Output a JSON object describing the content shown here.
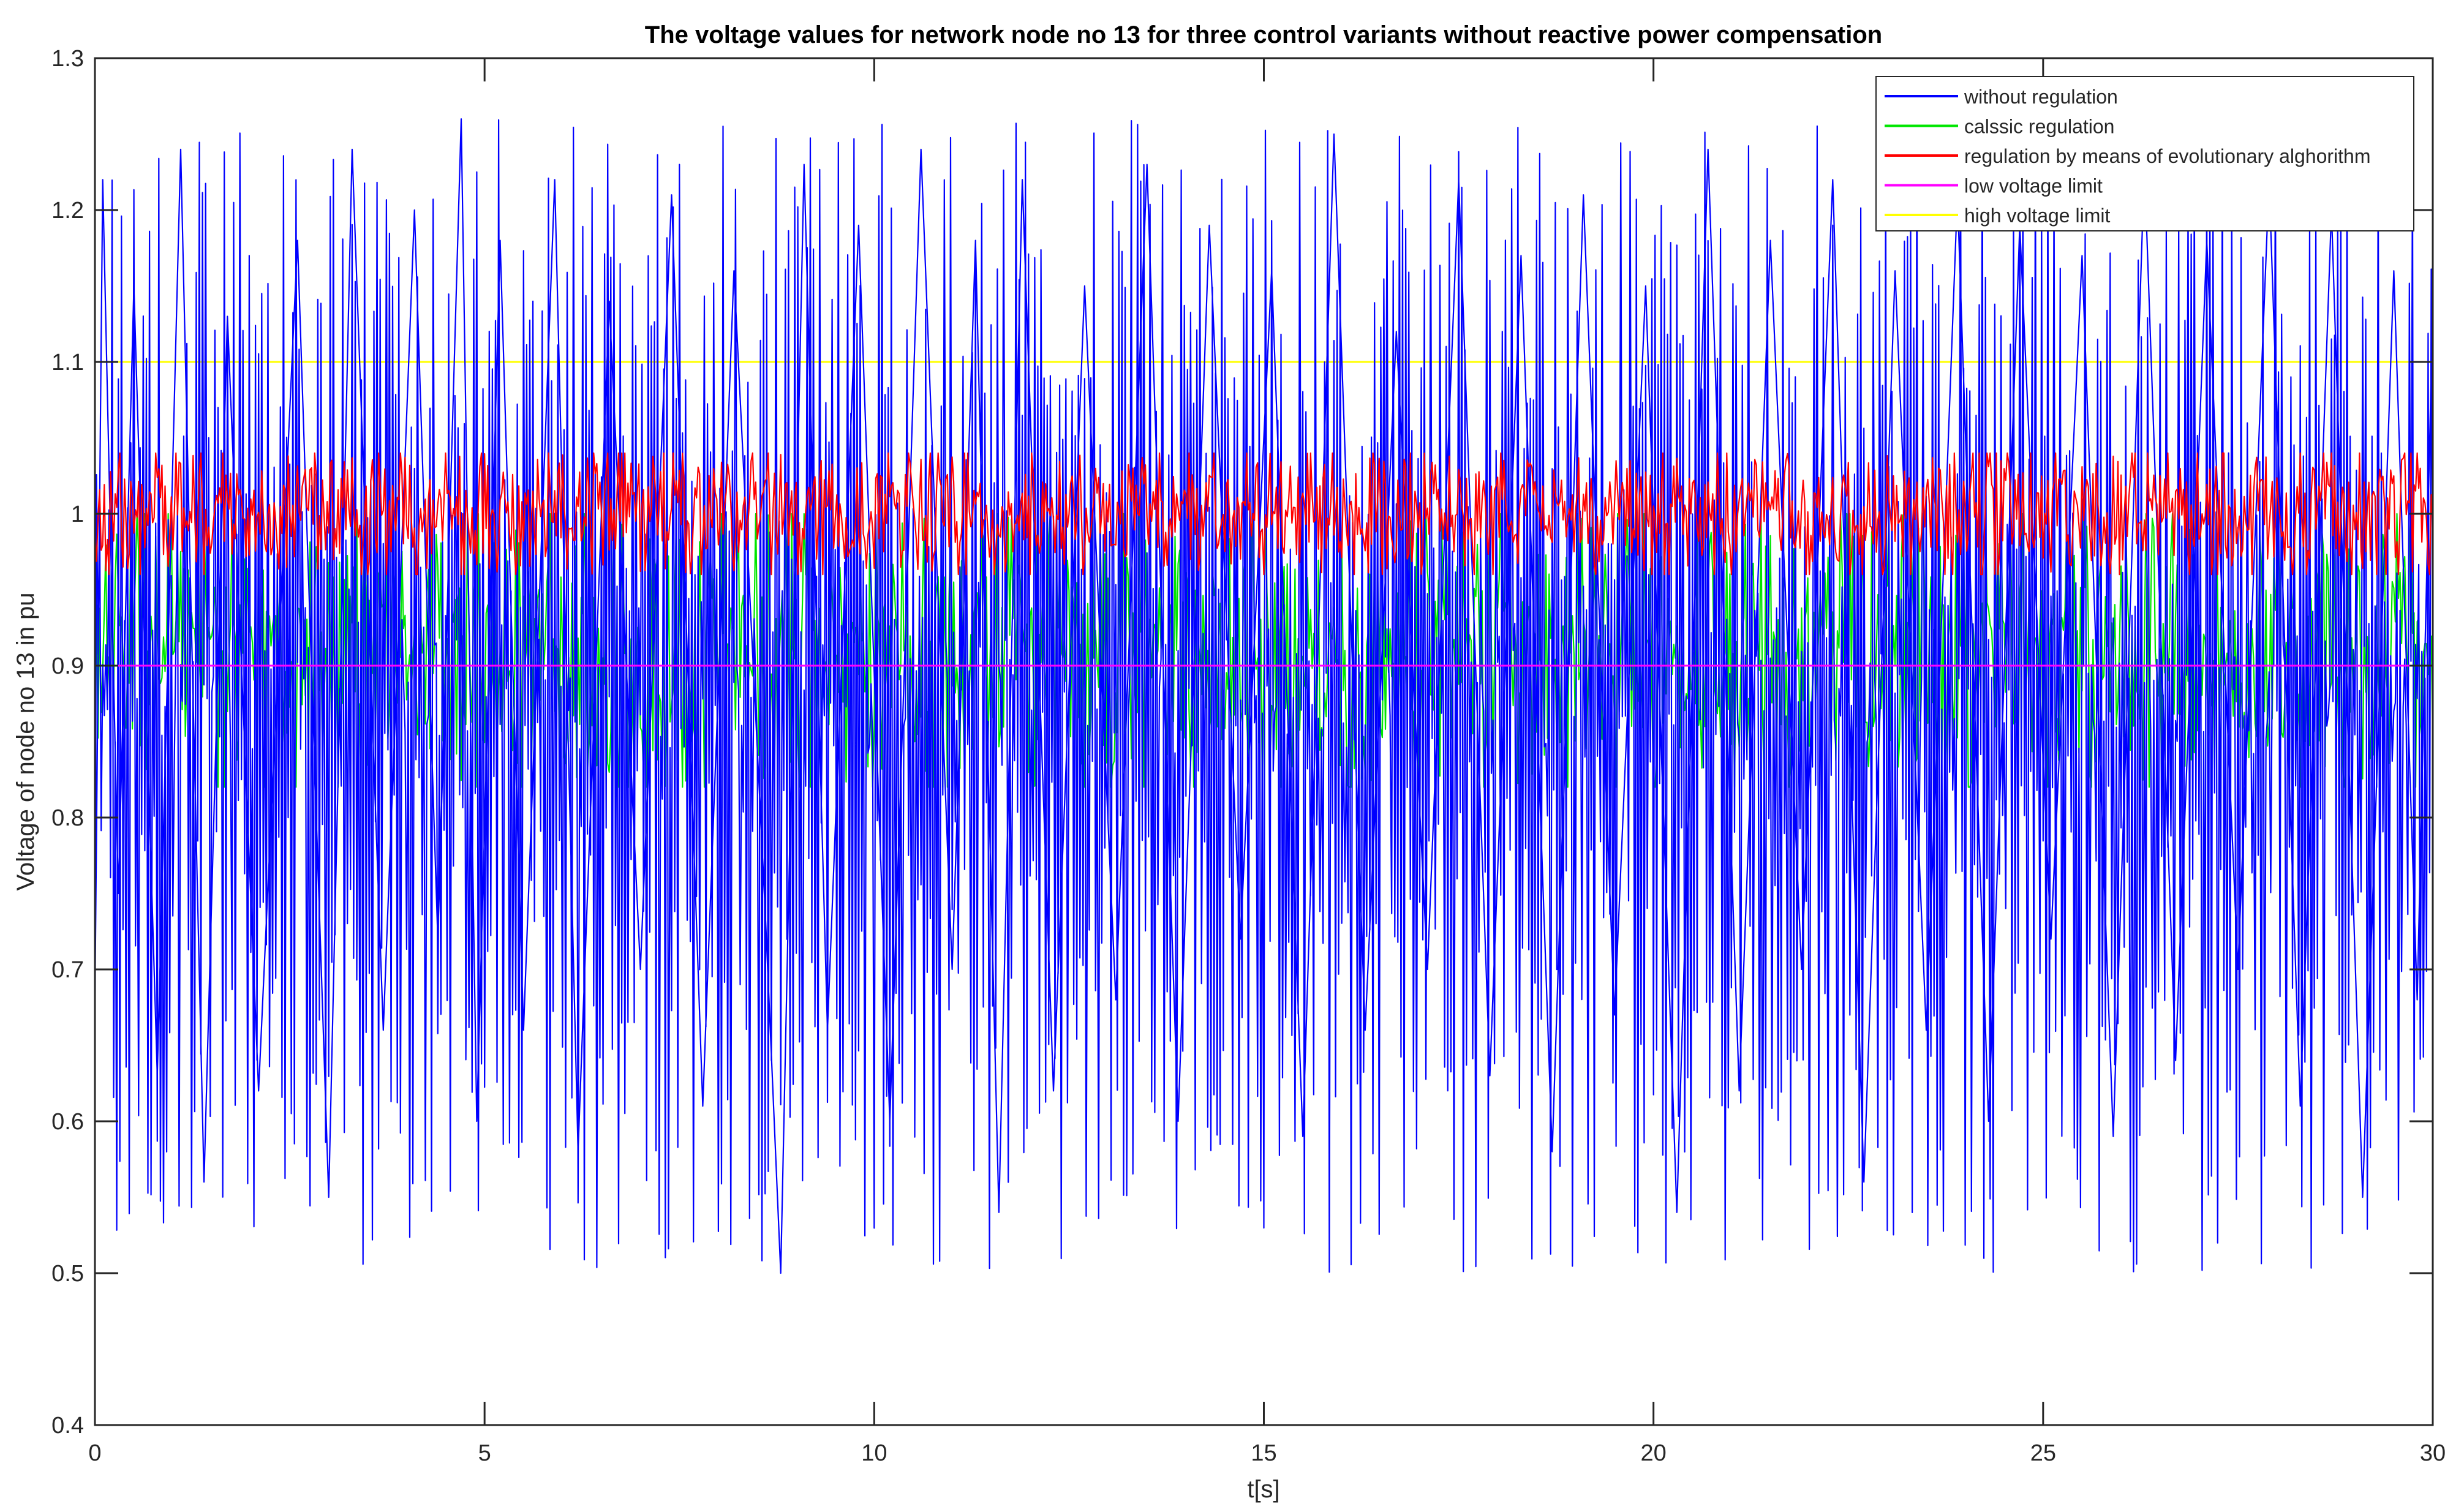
{
  "chart_data": {
    "type": "line",
    "title": "The voltage values for network node no 13 for three control variants without reactive power compensation",
    "xlabel": "t[s]",
    "ylabel": "Voltage of node no 13 in pu",
    "xlim": [
      0,
      30
    ],
    "ylim": [
      0.4,
      1.3
    ],
    "xticks": [
      "0",
      "5",
      "10",
      "15",
      "20",
      "25",
      "30"
    ],
    "yticks": [
      "0.4",
      "0.5",
      "0.6",
      "0.7",
      "0.8",
      "0.9",
      "1",
      "1.1",
      "1.2",
      "1.3"
    ],
    "grid": false,
    "legend_position": "top-right",
    "series": [
      {
        "name": "without regulation",
        "color": "#0000ff",
        "approx_mean": 0.93,
        "approx_range": [
          0.5,
          1.26
        ],
        "x": [
          0,
          0.1,
          0.3,
          0.5,
          0.8,
          1.1,
          1.4,
          1.7,
          2.1,
          2.6,
          3.0,
          3.3,
          3.7,
          4.1,
          4.4,
          4.7,
          4.9,
          5.2,
          5.5,
          5.9,
          6.2,
          6.6,
          7.0,
          7.4,
          7.8,
          8.2,
          8.6,
          8.8,
          9.1,
          9.4,
          9.8,
          10.2,
          10.6,
          11.0,
          11.3,
          11.6,
          11.9,
          12.3,
          12.7,
          13.1,
          13.5,
          13.9,
          14.3,
          14.7,
          15.1,
          15.5,
          15.9,
          16.3,
          16.7,
          17.1,
          17.5,
          17.9,
          18.3,
          18.7,
          19.1,
          19.5,
          19.9,
          20.3,
          20.7,
          21.1,
          21.5,
          21.9,
          22.3,
          22.7,
          23.1,
          23.5,
          23.9,
          24.3,
          24.7,
          25.1,
          25.5,
          25.9,
          26.3,
          26.7,
          27.1,
          27.5,
          27.9,
          28.3,
          28.7,
          29.1,
          29.5,
          29.8,
          30
        ],
        "y": [
          0.68,
          1.22,
          0.75,
          1.15,
          0.63,
          1.24,
          0.56,
          1.13,
          0.62,
          1.18,
          0.55,
          1.24,
          0.66,
          1.2,
          0.72,
          1.26,
          0.6,
          1.18,
          0.66,
          1.22,
          0.58,
          1.14,
          0.7,
          1.21,
          0.61,
          1.16,
          0.74,
          0.5,
          1.23,
          0.66,
          1.19,
          0.6,
          1.24,
          0.7,
          1.18,
          0.54,
          1.22,
          0.62,
          1.15,
          0.68,
          1.23,
          0.6,
          1.19,
          0.72,
          1.16,
          0.59,
          1.25,
          0.66,
          1.12,
          0.7,
          1.22,
          0.63,
          1.17,
          0.58,
          1.21,
          0.67,
          1.15,
          0.54,
          1.24,
          0.62,
          1.18,
          0.7,
          1.22,
          0.56,
          1.16,
          0.66,
          1.21,
          0.6,
          1.19,
          0.72,
          1.17,
          0.59,
          1.23,
          0.64,
          1.18,
          0.7,
          1.22,
          0.61,
          1.2,
          0.55,
          1.16,
          0.68,
          1.14
        ]
      },
      {
        "name": "calssic regulation",
        "color": "#00e600",
        "approx_mean": 0.91,
        "approx_range": [
          0.82,
          1.0
        ]
      },
      {
        "name": "regulation by means of evolutionary alghorithm",
        "color": "#ff0000",
        "approx_mean": 1.0,
        "approx_range": [
          0.96,
          1.04
        ]
      },
      {
        "name": "low voltage limit",
        "color": "#ff00ff",
        "x": [
          0,
          30
        ],
        "y": [
          0.9,
          0.9
        ]
      },
      {
        "name": "high voltage limit",
        "color": "#ffff00",
        "x": [
          0,
          30
        ],
        "y": [
          1.1,
          1.1
        ]
      }
    ]
  }
}
